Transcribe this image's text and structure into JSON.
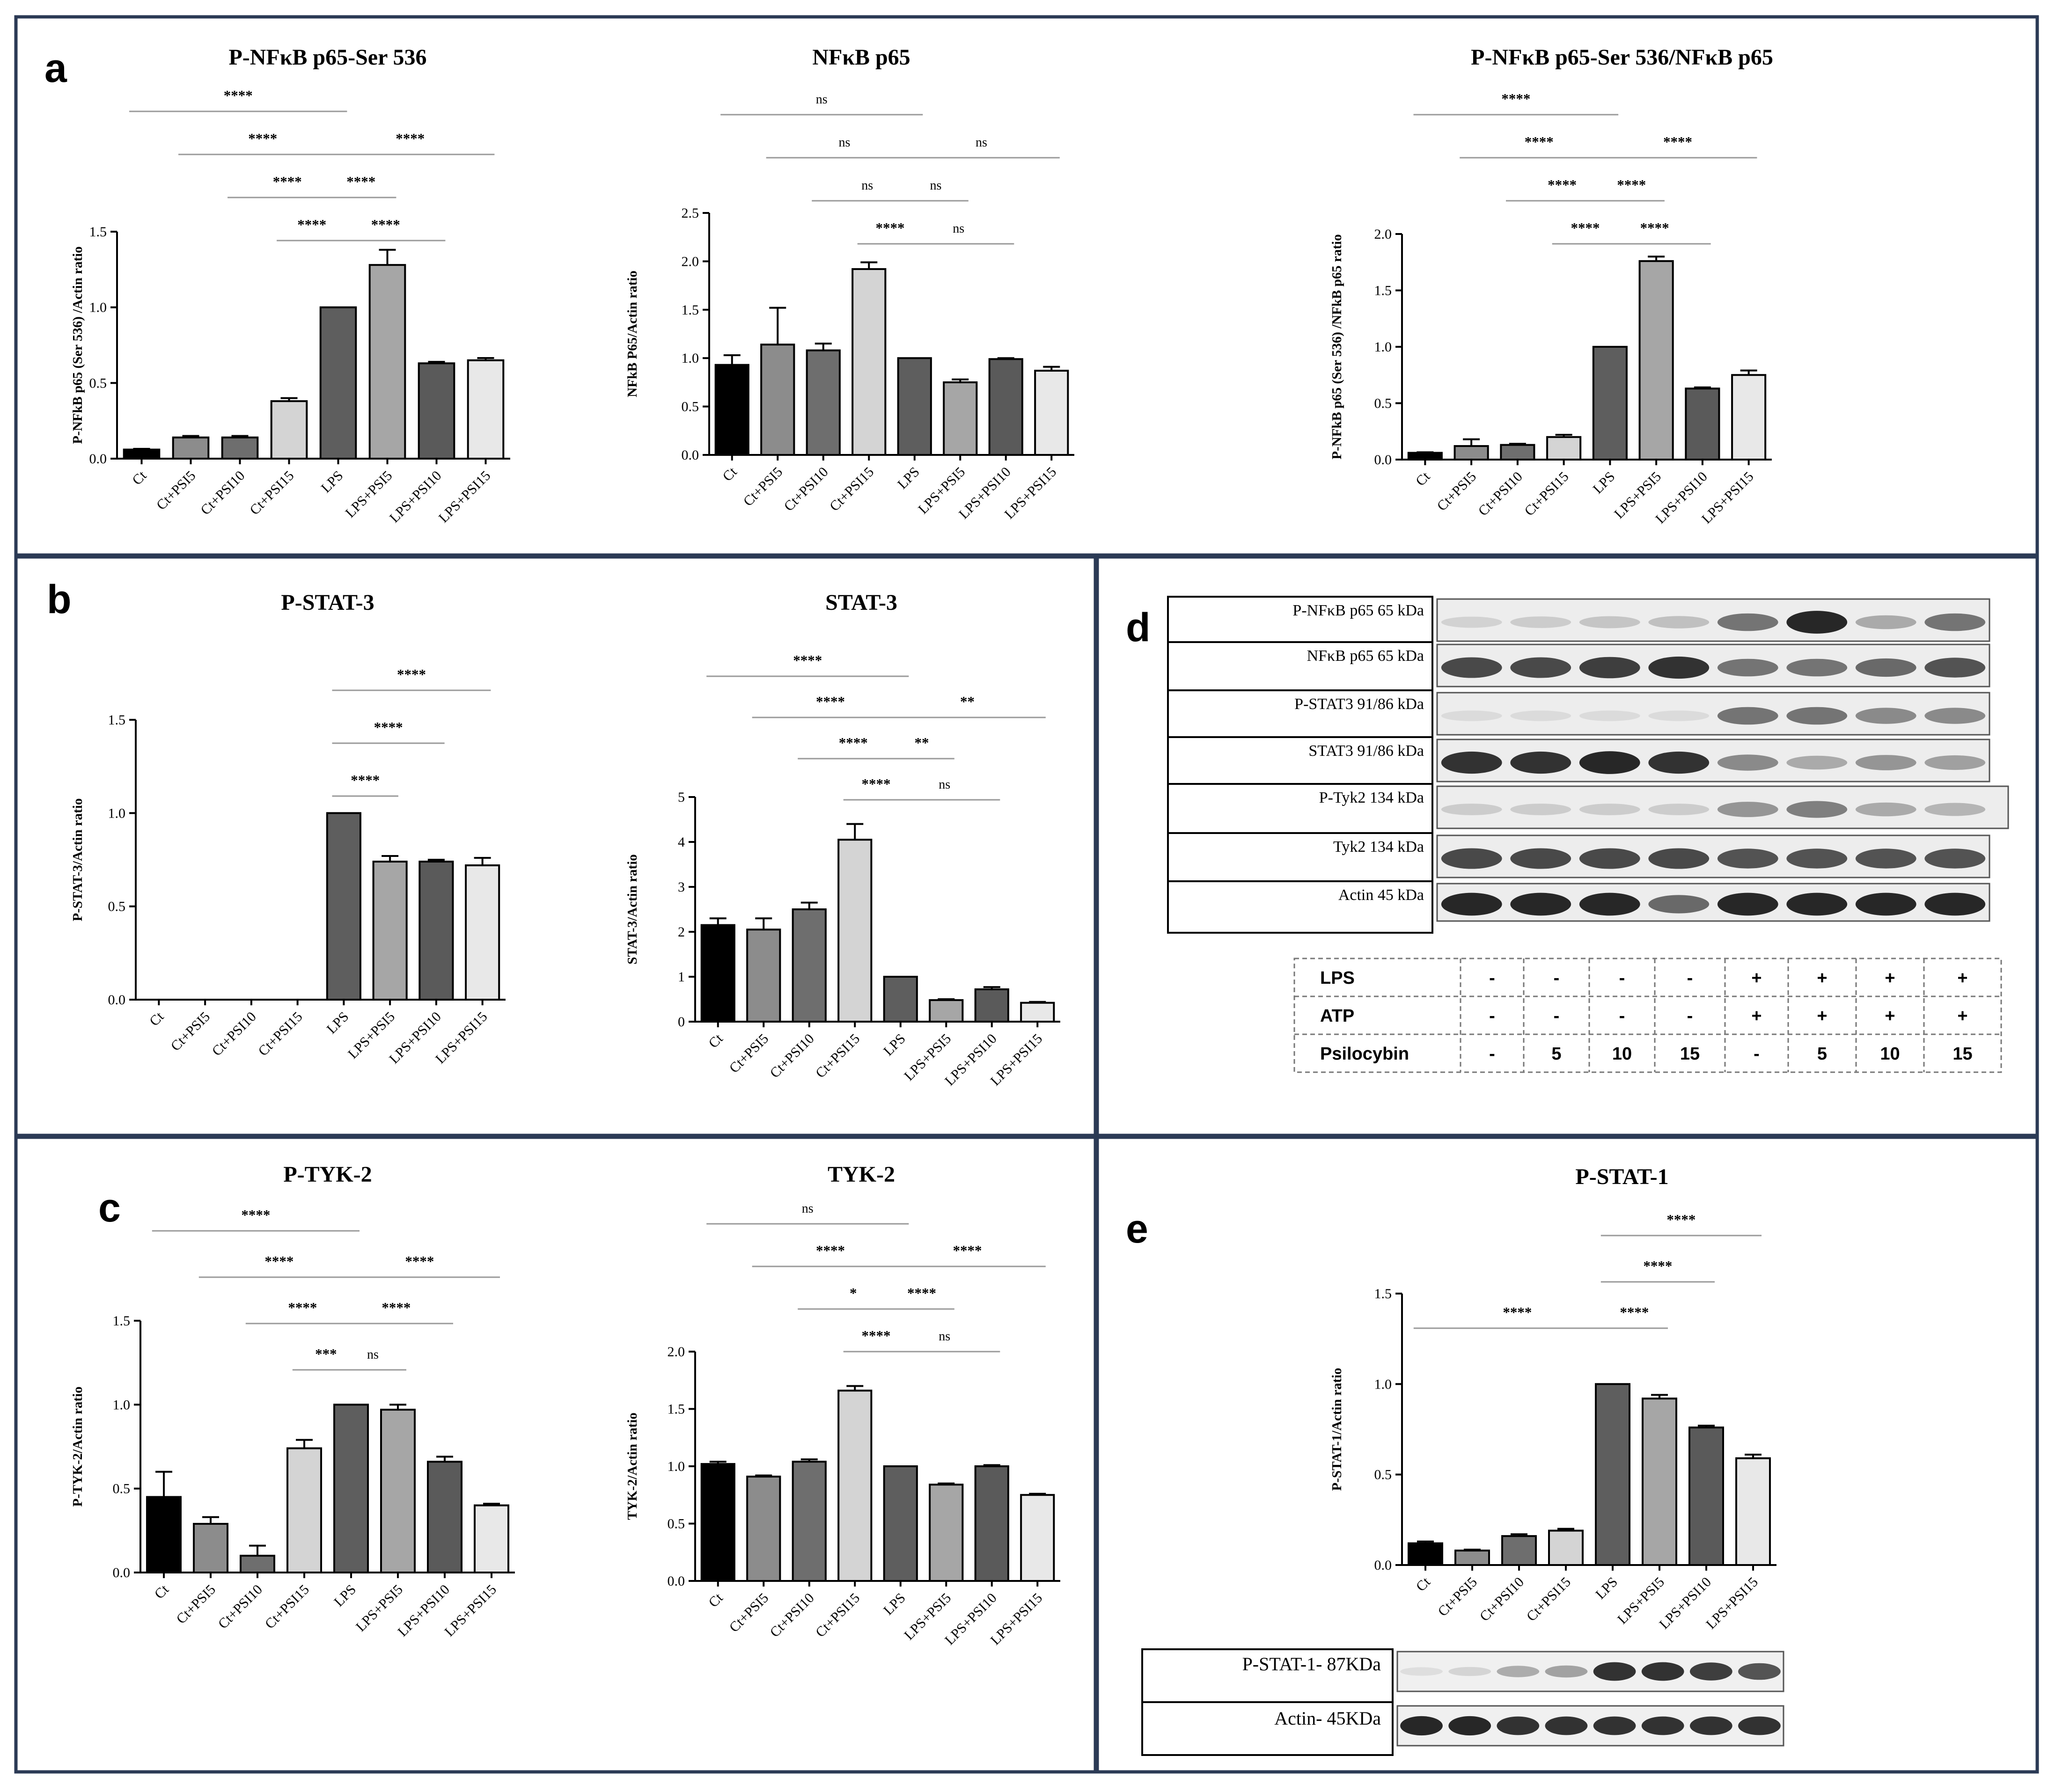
{
  "panels": {
    "a": "a",
    "b": "b",
    "c": "c",
    "d": "d",
    "e": "e"
  },
  "chart_data": [
    {
      "id": "a1",
      "type": "bar",
      "title": "P-NFκB p65-Ser 536",
      "ylabel": "P-NFkB p65 (Ser 536) /Actin ratio",
      "categories": [
        "Ct",
        "Ct+PSI5",
        "Ct+PSI10",
        "Ct+PSI15",
        "LPS",
        "LPS+PSI5",
        "LPS+PSI10",
        "LPS+PSI15"
      ],
      "values": [
        0.06,
        0.14,
        0.14,
        0.38,
        1.0,
        1.28,
        0.63,
        0.65
      ],
      "errors": [
        0.005,
        0.01,
        0.01,
        0.02,
        0.0,
        0.1,
        0.01,
        0.015
      ],
      "ylim": [
        0,
        1.5
      ],
      "yticks": [
        "0.0",
        "0.5",
        "1.0",
        "1.5"
      ],
      "significance": [
        {
          "from": 0,
          "to": 4,
          "label": "****"
        },
        {
          "from": 1,
          "to": 4,
          "label": "****"
        },
        {
          "from": 4,
          "to": 7,
          "label": "****"
        },
        {
          "from": 2,
          "to": 4,
          "label": "****"
        },
        {
          "from": 4,
          "to": 5,
          "label": "****"
        },
        {
          "from": 3,
          "to": 4,
          "label": "****"
        },
        {
          "from": 4,
          "to": 6,
          "label": "****"
        }
      ]
    },
    {
      "id": "a2",
      "type": "bar",
      "title": "NFκB p65",
      "ylabel": "NFkB P65/Actin ratio",
      "categories": [
        "Ct",
        "Ct+PSI5",
        "Ct+PSI10",
        "Ct+PSI15",
        "LPS",
        "LPS+PSI5",
        "LPS+PSI10",
        "LPS+PSI15"
      ],
      "values": [
        0.93,
        1.14,
        1.08,
        1.92,
        1.0,
        0.75,
        0.99,
        0.87
      ],
      "errors": [
        0.1,
        0.38,
        0.07,
        0.07,
        0.0,
        0.03,
        0.01,
        0.04
      ],
      "ylim": [
        0,
        2.5
      ],
      "yticks": [
        "0.0",
        "0.5",
        "1.0",
        "1.5",
        "2.0",
        "2.5"
      ],
      "significance": [
        {
          "from": 0,
          "to": 4,
          "label": "ns"
        },
        {
          "from": 1,
          "to": 4,
          "label": "ns"
        },
        {
          "from": 4,
          "to": 7,
          "label": "ns"
        },
        {
          "from": 2,
          "to": 4,
          "label": "ns"
        },
        {
          "from": 4,
          "to": 5,
          "label": "ns"
        },
        {
          "from": 3,
          "to": 4,
          "label": "****"
        },
        {
          "from": 4,
          "to": 6,
          "label": "ns"
        }
      ]
    },
    {
      "id": "a3",
      "type": "bar",
      "title": "P-NFκB p65-Ser 536/NFκB p65",
      "ylabel": "P-NFkB p65 (Ser 536) /NFkB p65 ratio",
      "categories": [
        "Ct",
        "Ct+PSI5",
        "Ct+PSI10",
        "Ct+PSI15",
        "LPS",
        "LPS+PSI5",
        "LPS+PSI10",
        "LPS+PSI15"
      ],
      "values": [
        0.06,
        0.12,
        0.13,
        0.2,
        1.0,
        1.76,
        0.63,
        0.75
      ],
      "errors": [
        0.005,
        0.06,
        0.01,
        0.02,
        0.0,
        0.04,
        0.01,
        0.04
      ],
      "ylim": [
        0,
        2.0
      ],
      "yticks": [
        "0.0",
        "0.5",
        "1.0",
        "1.5",
        "2.0"
      ],
      "significance": [
        {
          "from": 0,
          "to": 4,
          "label": "****"
        },
        {
          "from": 1,
          "to": 4,
          "label": "****"
        },
        {
          "from": 4,
          "to": 7,
          "label": "****"
        },
        {
          "from": 2,
          "to": 4,
          "label": "****"
        },
        {
          "from": 4,
          "to": 5,
          "label": "****"
        },
        {
          "from": 3,
          "to": 4,
          "label": "****"
        },
        {
          "from": 4,
          "to": 6,
          "label": "****"
        }
      ]
    },
    {
      "id": "b1",
      "type": "bar",
      "title": "P-STAT-3",
      "ylabel": "P-STAT-3/Actin ratio",
      "categories": [
        "Ct",
        "Ct+PSI5",
        "Ct+PSI10",
        "Ct+PSI15",
        "LPS",
        "LPS+PSI5",
        "LPS+PSI10",
        "LPS+PSI15"
      ],
      "values": [
        0,
        0,
        0,
        0,
        1.0,
        0.74,
        0.74,
        0.72
      ],
      "errors": [
        0,
        0,
        0,
        0,
        0.0,
        0.03,
        0.01,
        0.04
      ],
      "ylim": [
        0,
        1.5
      ],
      "yticks": [
        "0.0",
        "0.5",
        "1.0",
        "1.5"
      ],
      "significance": [
        {
          "from": 4,
          "to": 7,
          "label": "****"
        },
        {
          "from": 4,
          "to": 6,
          "label": "****"
        },
        {
          "from": 4,
          "to": 5,
          "label": "****"
        }
      ]
    },
    {
      "id": "b2",
      "type": "bar",
      "title": "STAT-3",
      "ylabel": "STAT-3/Actin ratio",
      "categories": [
        "Ct",
        "Ct+PSI5",
        "Ct+PSI10",
        "Ct+PSI15",
        "LPS",
        "LPS+PSI5",
        "LPS+PSI10",
        "LPS+PSI15"
      ],
      "values": [
        2.15,
        2.05,
        2.5,
        4.05,
        1.0,
        0.48,
        0.72,
        0.42
      ],
      "errors": [
        0.15,
        0.25,
        0.15,
        0.35,
        0.0,
        0.02,
        0.05,
        0.02
      ],
      "ylim": [
        0,
        5
      ],
      "yticks": [
        "0",
        "1",
        "2",
        "3",
        "4",
        "5"
      ],
      "significance": [
        {
          "from": 0,
          "to": 4,
          "label": "****"
        },
        {
          "from": 1,
          "to": 4,
          "label": "****"
        },
        {
          "from": 4,
          "to": 7,
          "label": "**"
        },
        {
          "from": 2,
          "to": 4,
          "label": "****"
        },
        {
          "from": 4,
          "to": 5,
          "label": "**"
        },
        {
          "from": 3,
          "to": 4,
          "label": "****"
        },
        {
          "from": 4,
          "to": 6,
          "label": "ns"
        }
      ]
    },
    {
      "id": "c1",
      "type": "bar",
      "title": "P-TYK-2",
      "ylabel": "P-TYK-2/Actin ratio",
      "categories": [
        "Ct",
        "Ct+PSI5",
        "Ct+PSI10",
        "Ct+PSI15",
        "LPS",
        "LPS+PSI5",
        "LPS+PSI10",
        "LPS+PSI15"
      ],
      "values": [
        0.45,
        0.29,
        0.1,
        0.74,
        1.0,
        0.97,
        0.66,
        0.4
      ],
      "errors": [
        0.15,
        0.04,
        0.06,
        0.05,
        0.0,
        0.03,
        0.03,
        0.01
      ],
      "ylim": [
        0,
        1.5
      ],
      "yticks": [
        "0.0",
        "0.5",
        "1.0",
        "1.5"
      ],
      "significance": [
        {
          "from": 0,
          "to": 4,
          "label": "****"
        },
        {
          "from": 1,
          "to": 4,
          "label": "****"
        },
        {
          "from": 4,
          "to": 7,
          "label": "****"
        },
        {
          "from": 2,
          "to": 4,
          "label": "****"
        },
        {
          "from": 4,
          "to": 6,
          "label": "****"
        },
        {
          "from": 3,
          "to": 4,
          "label": "***"
        },
        {
          "from": 4,
          "to": 5,
          "label": "ns"
        }
      ]
    },
    {
      "id": "c2",
      "type": "bar",
      "title": "TYK-2",
      "ylabel": "TYK-2/Actin ratio",
      "categories": [
        "Ct",
        "Ct+PSI5",
        "Ct+PSI10",
        "Ct+PSI15",
        "LPS",
        "LPS+PSI5",
        "LPS+PSI10",
        "LPS+PSI15"
      ],
      "values": [
        1.02,
        0.91,
        1.04,
        1.66,
        1.0,
        0.84,
        1.0,
        0.75
      ],
      "errors": [
        0.02,
        0.01,
        0.02,
        0.04,
        0.0,
        0.01,
        0.01,
        0.01
      ],
      "ylim": [
        0,
        2.0
      ],
      "yticks": [
        "0.0",
        "0.5",
        "1.0",
        "1.5",
        "2.0"
      ],
      "significance": [
        {
          "from": 0,
          "to": 4,
          "label": "ns"
        },
        {
          "from": 1,
          "to": 4,
          "label": "****"
        },
        {
          "from": 4,
          "to": 7,
          "label": "****"
        },
        {
          "from": 2,
          "to": 4,
          "label": "*"
        },
        {
          "from": 4,
          "to": 5,
          "label": "****"
        },
        {
          "from": 3,
          "to": 4,
          "label": "****"
        },
        {
          "from": 4,
          "to": 6,
          "label": "ns"
        }
      ]
    },
    {
      "id": "e1",
      "type": "bar",
      "title": "P-STAT-1",
      "ylabel": "P-STAT-1/Actin ratio",
      "categories": [
        "Ct",
        "Ct+PSI5",
        "Ct+PSI10",
        "Ct+PSI15",
        "LPS",
        "LPS+PSI5",
        "LPS+PSI10",
        "LPS+PSI15"
      ],
      "values": [
        0.12,
        0.08,
        0.16,
        0.19,
        1.0,
        0.92,
        0.76,
        0.59
      ],
      "errors": [
        0.01,
        0.005,
        0.01,
        0.01,
        0.0,
        0.02,
        0.01,
        0.02
      ],
      "ylim": [
        0,
        1.5
      ],
      "yticks": [
        "0.0",
        "0.5",
        "1.0",
        "1.5"
      ],
      "significance": [
        {
          "from": 4,
          "to": 7,
          "label": "****"
        },
        {
          "from": 4,
          "to": 6,
          "label": "****"
        },
        {
          "from": 0,
          "to": 4,
          "label": "****"
        },
        {
          "from": 4,
          "to": 5,
          "label": "****"
        }
      ]
    }
  ],
  "western_blot": {
    "labels": [
      "P-NFκB p65 65 kDa",
      "NFκB p65 65 kDa",
      "P-STAT3 91/86 kDa",
      "STAT3 91/86 kDa",
      "P-Tyk2 134 kDa",
      "Tyk2 134 kDa",
      "Actin 45 kDa"
    ],
    "band_intensity": [
      [
        0.12,
        0.15,
        0.18,
        0.2,
        0.55,
        0.9,
        0.3,
        0.55
      ],
      [
        0.75,
        0.75,
        0.8,
        0.85,
        0.55,
        0.55,
        0.6,
        0.7
      ],
      [
        0.08,
        0.08,
        0.08,
        0.08,
        0.55,
        0.55,
        0.45,
        0.45
      ],
      [
        0.85,
        0.85,
        0.9,
        0.85,
        0.45,
        0.3,
        0.4,
        0.35
      ],
      [
        0.15,
        0.15,
        0.15,
        0.15,
        0.4,
        0.5,
        0.3,
        0.25
      ],
      [
        0.75,
        0.75,
        0.75,
        0.75,
        0.7,
        0.7,
        0.7,
        0.7
      ],
      [
        0.9,
        0.9,
        0.9,
        0.6,
        0.9,
        0.9,
        0.9,
        0.9
      ]
    ],
    "treatment_table": [
      {
        "label": "LPS",
        "values": [
          "-",
          "-",
          "-",
          "-",
          "+",
          "+",
          "+",
          "+"
        ]
      },
      {
        "label": "ATP",
        "values": [
          "-",
          "-",
          "-",
          "-",
          "+",
          "+",
          "+",
          "+"
        ]
      },
      {
        "label": "Psilocybin",
        "values": [
          "-",
          "5",
          "10",
          "15",
          "-",
          "5",
          "10",
          "15"
        ]
      }
    ]
  },
  "stat1_blot": {
    "labels": [
      "P-STAT-1- 87KDa",
      "Actin- 45KDa"
    ],
    "band_intensity": [
      [
        0.08,
        0.12,
        0.3,
        0.35,
        0.85,
        0.85,
        0.8,
        0.7
      ],
      [
        0.9,
        0.9,
        0.85,
        0.85,
        0.85,
        0.85,
        0.85,
        0.85
      ]
    ]
  }
}
